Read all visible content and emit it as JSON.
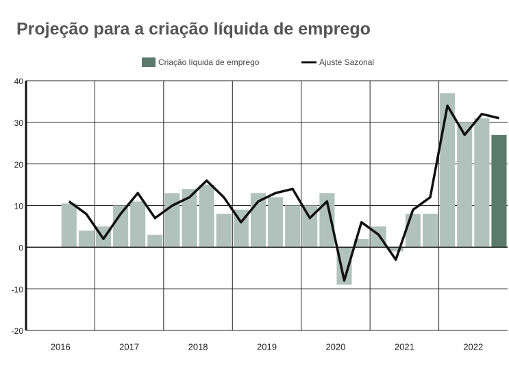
{
  "chart_data": {
    "type": "bar_line",
    "title": "Projeção para a criação líquida de emprego",
    "categories": [
      null,
      null,
      null,
      null,
      null,
      null,
      null,
      null,
      null,
      null,
      null,
      null,
      null,
      null,
      null,
      null,
      null,
      null,
      null,
      null,
      null,
      null,
      null,
      null,
      null,
      null
    ],
    "year_labels": [
      "2016",
      "2017",
      "2018",
      "2019",
      "2020",
      "2021",
      "2022"
    ],
    "series": [
      {
        "name": "Criação líquida de emprego",
        "color": "#5b7a6b",
        "colors": [
          "#b0c2bb",
          "#b0c2bb",
          "#b0c2bb",
          "#b0c2bb",
          "#b0c2bb",
          "#b0c2bb",
          "#b0c2bb",
          "#b0c2bb",
          "#b0c2bb",
          "#b0c2bb",
          "#b0c2bb",
          "#b0c2bb",
          "#b0c2bb",
          "#b0c2bb",
          "#b0c2bb",
          "#b0c2bb",
          "#b0c2bb",
          "#b0c2bb",
          "#b0c2bb",
          "#b0c2bb",
          "#b0c2bb",
          "#b0c2bb",
          "#b0c2bb",
          "#b0c2bb",
          "#b0c2bb",
          "#5b7a6b"
        ],
        "values": [
          10.5,
          4,
          5,
          10,
          11,
          3,
          13,
          14,
          15,
          8,
          9,
          13,
          12,
          10,
          10,
          13,
          -9,
          2,
          5,
          -1,
          8,
          8,
          37,
          30,
          31,
          27
        ]
      },
      {
        "name": "Ajuste Sazonal",
        "color": "#111111",
        "kind": "line",
        "values": [
          11,
          8,
          2,
          8,
          13,
          7,
          10,
          12,
          16,
          12,
          6,
          11,
          13,
          14,
          7,
          11,
          -8,
          6,
          3,
          -3,
          9,
          12,
          34,
          27,
          32,
          31
        ]
      }
    ],
    "ylim": [
      -20,
      40
    ],
    "yticks": [
      -20,
      -10,
      0,
      10,
      20,
      30,
      40
    ],
    "grid": true
  }
}
